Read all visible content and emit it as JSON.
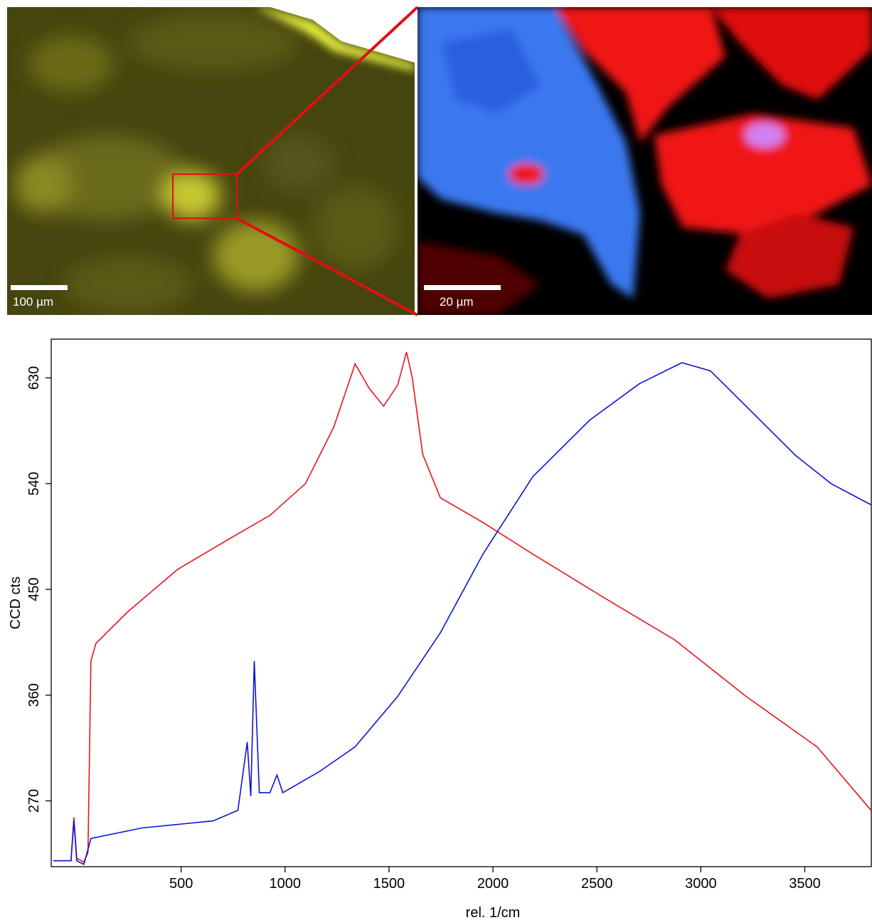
{
  "scale_bars": [
    "100 µm",
    "20 µm"
  ],
  "chart_data": {
    "type": "line",
    "x_label": "rel. 1/cm",
    "y_label": "CCD cts",
    "xlim": [
      -125,
      3820
    ],
    "ylim": [
      214,
      663
    ],
    "xticks": [
      500,
      1000,
      1500,
      2000,
      2500,
      3000,
      3500
    ],
    "yticks": [
      270,
      360,
      450,
      540,
      630
    ],
    "series": [
      {
        "color": "#e8141c",
        "x": [
          -115,
          -30,
          -16,
          -2,
          32,
          52,
          66,
          90,
          244,
          483,
          722,
          927,
          1098,
          1234,
          1337,
          1405,
          1474,
          1542,
          1584,
          1611,
          1662,
          1747,
          1952,
          2192,
          2534,
          2875,
          3217,
          3559,
          3819
        ],
        "values": [
          219,
          219,
          256,
          221,
          218,
          226,
          389,
          404,
          431,
          467,
          492,
          513,
          540,
          588,
          642,
          621,
          606,
          624,
          652,
          631,
          565,
          528,
          507,
          480,
          443,
          407,
          359,
          316,
          262
        ]
      },
      {
        "color": "#0a14d8",
        "x": [
          -115,
          -30,
          -16,
          -2,
          32,
          66,
          312,
          654,
          773,
          818,
          835,
          852,
          876,
          927,
          961,
          989,
          1166,
          1337,
          1542,
          1747,
          1952,
          2192,
          2465,
          2704,
          2909,
          3046,
          3217,
          3456,
          3627,
          3819
        ],
        "values": [
          219,
          219,
          253,
          219,
          216,
          238,
          247,
          253,
          262,
          320,
          274,
          389,
          277,
          277,
          292,
          277,
          295,
          316,
          359,
          413,
          480,
          546,
          594,
          625,
          643,
          636,
          606,
          564,
          540,
          522
        ]
      }
    ]
  }
}
